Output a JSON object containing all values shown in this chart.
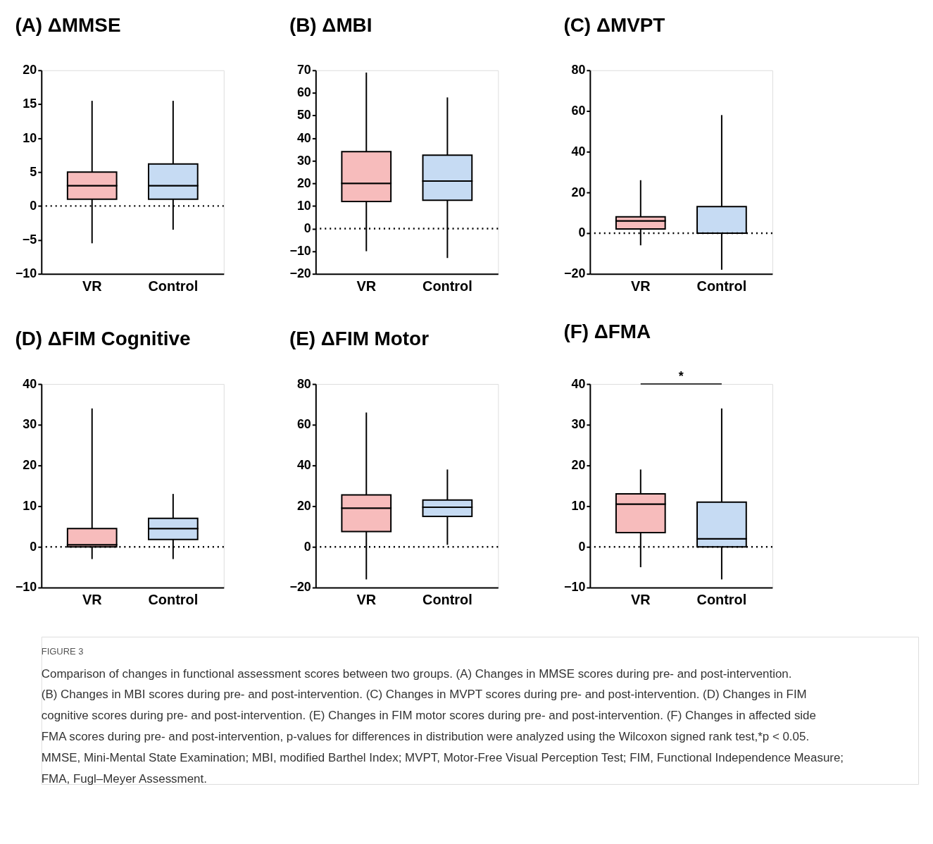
{
  "chart_data": [
    {
      "type": "box",
      "title": "(A) ΔMMSE",
      "categories": [
        "VR",
        "Control"
      ],
      "colors": [
        "#f7bcbc",
        "#c6dbf3"
      ],
      "ylim": [
        -10,
        20
      ],
      "yticks": [
        -10,
        -5,
        0,
        5,
        10,
        15,
        20
      ],
      "grid": false,
      "ref_lines": [
        {
          "axis": "y",
          "value": 0,
          "line_style": "dotted"
        }
      ],
      "boxes": [
        {
          "low": -5.5,
          "q1": 1,
          "median": 3,
          "q3": 5,
          "high": 15.5
        },
        {
          "low": -3.5,
          "q1": 1,
          "median": 3,
          "q3": 6.2,
          "high": 15.5
        }
      ]
    },
    {
      "type": "box",
      "title": "(B) ΔMBI",
      "categories": [
        "VR",
        "Control"
      ],
      "colors": [
        "#f7bcbc",
        "#c6dbf3"
      ],
      "ylim": [
        -20,
        70
      ],
      "yticks": [
        -20,
        -10,
        0,
        10,
        20,
        30,
        40,
        50,
        60,
        70
      ],
      "grid": false,
      "ref_lines": [
        {
          "axis": "y",
          "value": 0,
          "line_style": "dotted"
        }
      ],
      "boxes": [
        {
          "low": -10,
          "q1": 12,
          "median": 20,
          "q3": 34,
          "high": 69
        },
        {
          "low": -13,
          "q1": 12.5,
          "median": 21,
          "q3": 32.5,
          "high": 58
        }
      ]
    },
    {
      "type": "box",
      "title": "(C) ΔMVPT",
      "categories": [
        "VR",
        "Control"
      ],
      "colors": [
        "#f7bcbc",
        "#c6dbf3"
      ],
      "ylim": [
        -20,
        80
      ],
      "yticks": [
        -20,
        0,
        20,
        40,
        60,
        80
      ],
      "grid": false,
      "ref_lines": [
        {
          "axis": "y",
          "value": 0,
          "line_style": "dotted"
        }
      ],
      "boxes": [
        {
          "low": -6,
          "q1": 2,
          "median": 6,
          "q3": 8,
          "high": 26
        },
        {
          "low": -18,
          "q1": 0,
          "median": 0,
          "q3": 13,
          "high": 58
        }
      ]
    },
    {
      "type": "box",
      "title": "(D) ΔFIM Cognitive",
      "categories": [
        "VR",
        "Control"
      ],
      "colors": [
        "#f7bcbc",
        "#c6dbf3"
      ],
      "ylim": [
        -10,
        40
      ],
      "yticks": [
        -10,
        0,
        10,
        20,
        30,
        40
      ],
      "grid": false,
      "ref_lines": [
        {
          "axis": "y",
          "value": 0,
          "line_style": "dotted"
        }
      ],
      "boxes": [
        {
          "low": -3,
          "q1": 0,
          "median": 0.5,
          "q3": 4.5,
          "high": 34
        },
        {
          "low": -3,
          "q1": 1.8,
          "median": 4.5,
          "q3": 7,
          "high": 13
        }
      ]
    },
    {
      "type": "box",
      "title": "(E) ΔFIM Motor",
      "categories": [
        "VR",
        "Control"
      ],
      "colors": [
        "#f7bcbc",
        "#c6dbf3"
      ],
      "ylim": [
        -20,
        80
      ],
      "yticks": [
        -20,
        0,
        20,
        40,
        60,
        80
      ],
      "grid": false,
      "ref_lines": [
        {
          "axis": "y",
          "value": 0,
          "line_style": "dotted"
        }
      ],
      "boxes": [
        {
          "low": -16,
          "q1": 7.5,
          "median": 19,
          "q3": 25.5,
          "high": 66
        },
        {
          "low": 1,
          "q1": 15,
          "median": 19.5,
          "q3": 23,
          "high": 38
        }
      ]
    },
    {
      "type": "box",
      "title": "(F) ΔFMA",
      "categories": [
        "VR",
        "Control"
      ],
      "colors": [
        "#f7bcbc",
        "#c6dbf3"
      ],
      "ylim": [
        -10,
        40
      ],
      "yticks": [
        -10,
        0,
        10,
        20,
        30,
        40
      ],
      "grid": false,
      "ref_lines": [
        {
          "axis": "y",
          "value": 0,
          "line_style": "dotted"
        }
      ],
      "annotations": [
        "*"
      ],
      "boxes": [
        {
          "low": -5,
          "q1": 3.5,
          "median": 10.5,
          "q3": 13,
          "high": 19
        },
        {
          "low": -8,
          "q1": 0,
          "median": 2,
          "q3": 11,
          "high": 34
        }
      ]
    },
    {
      "type": "other",
      "annotations": [
        "FIGURE 3",
        "Comparison of changes in functional assessment scores between two groups. (A) Changes in MMSE scores during pre- and post-intervention.",
        "(B) Changes in MBI scores during pre- and post-intervention. (C) Changes in MVPT scores during pre- and post-intervention. (D) Changes in FIM",
        "cognitive scores during pre- and post-intervention. (E) Changes in FIM motor scores during pre- and post-intervention. (F) Changes in affected side",
        "FMA scores during pre- and post-intervention, p-values for differences in distribution were analyzed using the Wilcoxon signed rank test,*p < 0.05.",
        "MMSE, Mini-Mental State Examination; MBI, modified Barthel Index; MVPT, Motor-Free Visual Perception Test; FIM, Functional Independence Measure;",
        "FMA, Fugl–Meyer Assessment."
      ]
    }
  ]
}
